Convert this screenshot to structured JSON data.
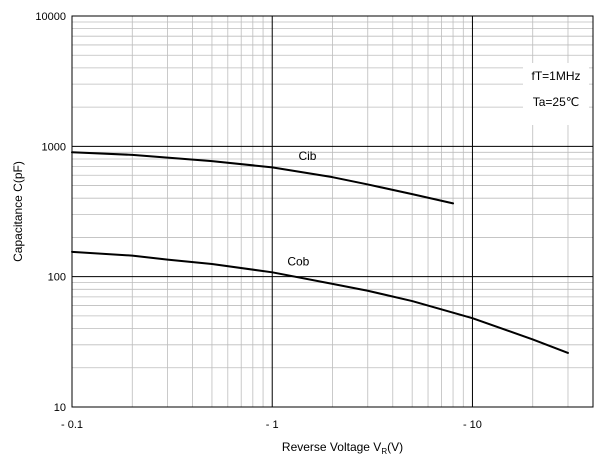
{
  "chart_data": {
    "type": "line",
    "title": "",
    "xlabel": "Reverse Voltage  V",
    "xlabel_sub": "R",
    "xlabel_unit": "(V)",
    "ylabel": "Capacitance  C(pF)",
    "x_scale": "log",
    "y_scale": "log",
    "xlim": [
      0.1,
      40
    ],
    "ylim": [
      10,
      10000
    ],
    "grid": true,
    "x_ticks": [
      {
        "value": 0.1,
        "label": "- 0.1"
      },
      {
        "value": 1,
        "label": "- 1"
      },
      {
        "value": 10,
        "label": "- 10"
      }
    ],
    "y_ticks": [
      {
        "value": 10,
        "label": "10"
      },
      {
        "value": 100,
        "label": "100"
      },
      {
        "value": 1000,
        "label": "1000"
      },
      {
        "value": 10000,
        "label": "10000"
      }
    ],
    "legend_box": [
      "fT=1MHz",
      "Ta=25℃"
    ],
    "legend_placement": "top-right",
    "series": [
      {
        "name": "Cib",
        "x": [
          0.1,
          0.2,
          0.3,
          0.5,
          1,
          2,
          3,
          5,
          8
        ],
        "values": [
          900,
          860,
          820,
          770,
          690,
          580,
          510,
          430,
          365
        ]
      },
      {
        "name": "Cob",
        "x": [
          0.1,
          0.2,
          0.3,
          0.5,
          1,
          2,
          3,
          5,
          10,
          20,
          30
        ],
        "values": [
          155,
          145,
          135,
          125,
          108,
          88,
          78,
          65,
          48,
          33,
          26
        ]
      }
    ]
  }
}
